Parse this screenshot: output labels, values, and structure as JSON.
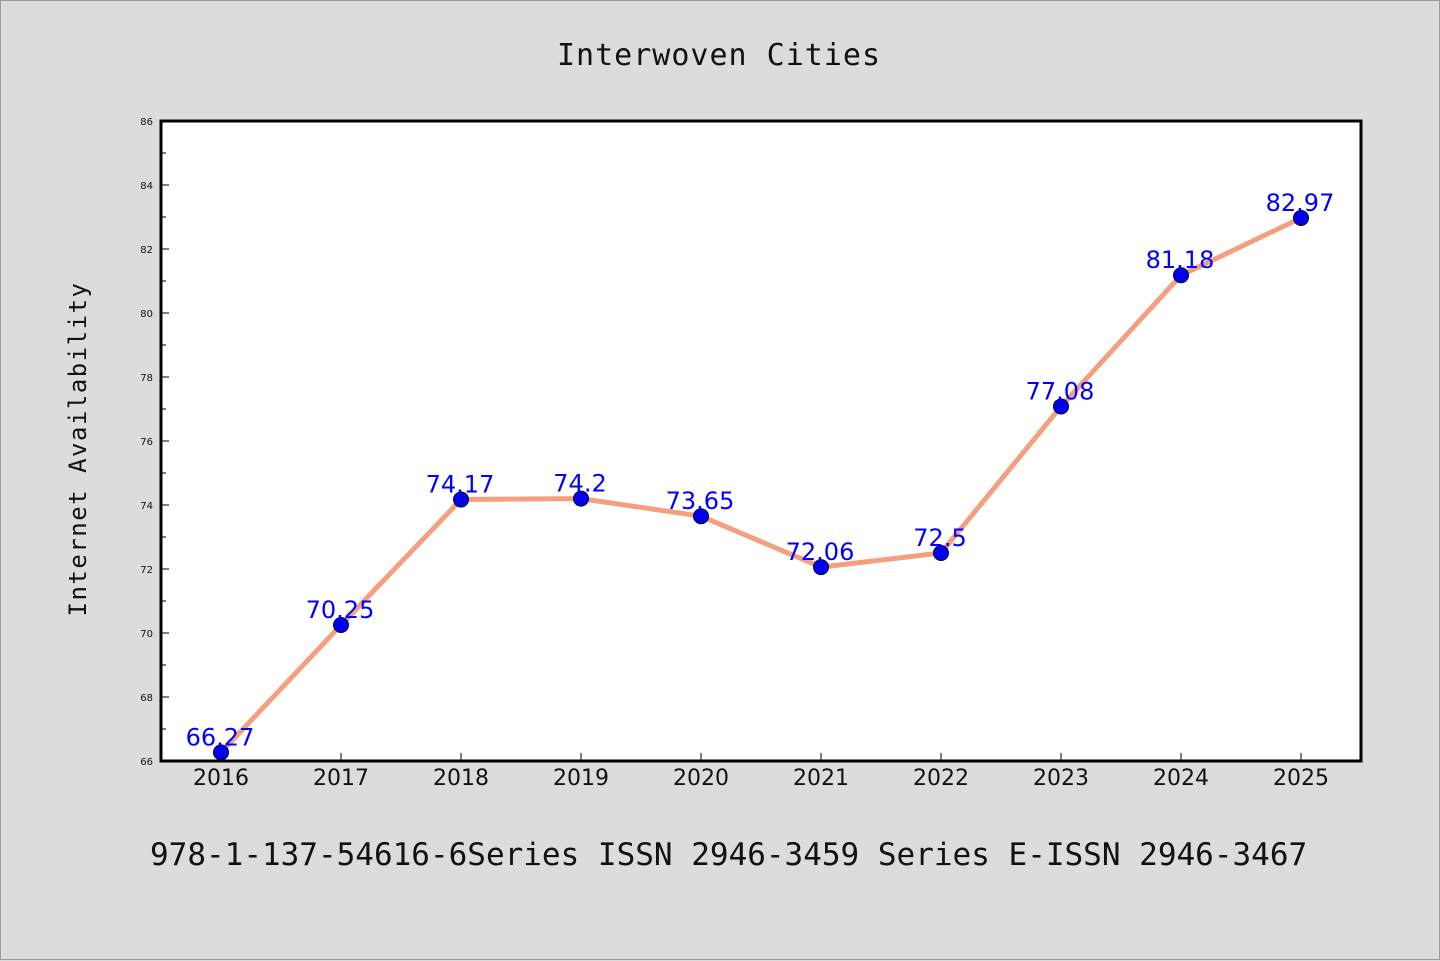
{
  "chart_data": {
    "type": "line",
    "title": "Interwoven Cities",
    "xlabel": "",
    "ylabel": "Internet Availability",
    "categories": [
      "2016",
      "2017",
      "2018",
      "2019",
      "2020",
      "2021",
      "2022",
      "2023",
      "2024",
      "2025"
    ],
    "values": [
      66.27,
      70.25,
      74.17,
      74.2,
      73.65,
      72.06,
      72.5,
      77.08,
      81.18,
      82.97
    ],
    "data_labels": [
      "66.27",
      "70.25",
      "74.17",
      "74.2",
      "73.65",
      "72.06",
      "72.5",
      "77.08",
      "81.18",
      "82.97"
    ],
    "ylim": [
      66,
      86
    ],
    "yticks": [
      66,
      68,
      70,
      72,
      74,
      76,
      78,
      80,
      82,
      84,
      86
    ],
    "grid": false,
    "legend": "none",
    "line_color": "#f4a07e",
    "marker_color": "#0000ee",
    "label_color": "#0000ff"
  },
  "footer": {
    "text": "978-1-137-54616-6Series ISSN 2946-3459 Series E-ISSN 2946-3467"
  },
  "colors": {
    "background": "#dcdcdc",
    "plot_background": "#ffffff",
    "axis": "#000000"
  }
}
